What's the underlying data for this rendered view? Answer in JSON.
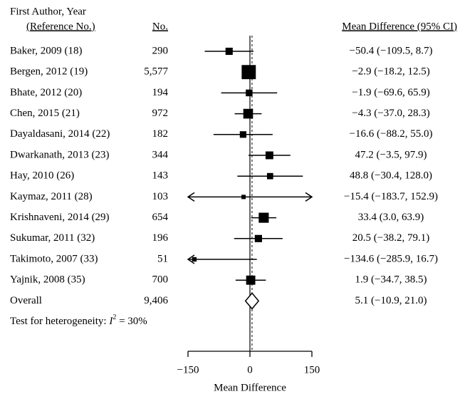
{
  "chart_data": {
    "type": "forest",
    "headers": {
      "study": "First Author, Year",
      "reference": "(Reference No.)",
      "n": "No.",
      "ci": "Mean Difference (95% CI)"
    },
    "studies": [
      {
        "label": "Baker, 2009 (18)",
        "n": "290",
        "estimate": -50.4,
        "lower": -109.5,
        "upper": 8.7,
        "ci_label": "−50.4 (−109.5, 8.7)"
      },
      {
        "label": "Bergen, 2012 (19)",
        "n": "5,577",
        "estimate": -2.9,
        "lower": -18.2,
        "upper": 12.5,
        "ci_label": "−2.9 (−18.2, 12.5)"
      },
      {
        "label": "Bhate, 2012 (20)",
        "n": "194",
        "estimate": -1.9,
        "lower": -69.6,
        "upper": 65.9,
        "ci_label": "−1.9 (−69.6, 65.9)"
      },
      {
        "label": "Chen, 2015 (21)",
        "n": "972",
        "estimate": -4.3,
        "lower": -37.0,
        "upper": 28.3,
        "ci_label": "−4.3 (−37.0, 28.3)"
      },
      {
        "label": "Dayaldasani, 2014 (22)",
        "n": "182",
        "estimate": -16.6,
        "lower": -88.2,
        "upper": 55.0,
        "ci_label": "−16.6 (−88.2, 55.0)"
      },
      {
        "label": "Dwarkanath, 2013 (23)",
        "n": "344",
        "estimate": 47.2,
        "lower": -3.5,
        "upper": 97.9,
        "ci_label": "47.2 (−3.5, 97.9)"
      },
      {
        "label": "Hay, 2010 (26)",
        "n": "143",
        "estimate": 48.8,
        "lower": -30.4,
        "upper": 128.0,
        "ci_label": "48.8 (−30.4, 128.0)"
      },
      {
        "label": "Kaymaz, 2011 (28)",
        "n": "103",
        "estimate": -15.4,
        "lower": -183.7,
        "upper": 152.9,
        "ci_label": "−15.4 (−183.7, 152.9)"
      },
      {
        "label": "Krishnaveni, 2014 (29)",
        "n": "654",
        "estimate": 33.4,
        "lower": 3.0,
        "upper": 63.9,
        "ci_label": "33.4 (3.0, 63.9)"
      },
      {
        "label": "Sukumar, 2011 (32)",
        "n": "196",
        "estimate": 20.5,
        "lower": -38.2,
        "upper": 79.1,
        "ci_label": "20.5 (−38.2, 79.1)"
      },
      {
        "label": "Takimoto, 2007 (33)",
        "n": "51",
        "estimate": -134.6,
        "lower": -285.9,
        "upper": 16.7,
        "ci_label": "−134.6 (−285.9, 16.7)"
      },
      {
        "label": "Yajnik, 2008 (35)",
        "n": "700",
        "estimate": 1.9,
        "lower": -34.7,
        "upper": 38.5,
        "ci_label": "1.9 (−34.7, 38.5)"
      }
    ],
    "overall": {
      "label": "Overall",
      "n": "9,406",
      "estimate": 5.1,
      "lower": -10.9,
      "upper": 21.0,
      "ci_label": "5.1 (−10.9, 21.0)"
    },
    "heterogeneity": {
      "prefix": "Test for heterogeneity: ",
      "symbol": "I",
      "sup": "2",
      "suffix": " = 30%"
    },
    "xlabel": "Mean Difference",
    "xlim": [
      -150,
      150
    ],
    "xticks": [
      {
        "value": -150,
        "label": "−150"
      },
      0,
      150
    ],
    "color": "#000000"
  }
}
